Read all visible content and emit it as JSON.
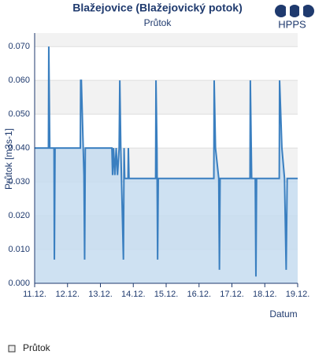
{
  "logo": "HPPS",
  "chart_data": {
    "type": "area",
    "title": "Blažejovice (Blažejovický potok)",
    "subtitle": "Průtok",
    "y_label": "Průtok [m3s-1]",
    "x_label": "Datum",
    "xlim": [
      11,
      19
    ],
    "xticks": [
      {
        "value": 11,
        "label": "11.12."
      },
      {
        "value": 12,
        "label": "12.12."
      },
      {
        "value": 13,
        "label": "13.12."
      },
      {
        "value": 14,
        "label": "14.12."
      },
      {
        "value": 15,
        "label": "15.12."
      },
      {
        "value": 16,
        "label": "16.12."
      },
      {
        "value": 17,
        "label": "17.12."
      },
      {
        "value": 18,
        "label": "18.12."
      },
      {
        "value": 19,
        "label": "19.12."
      }
    ],
    "ylim": [
      0,
      0.074
    ],
    "yticks": [
      {
        "value": 0,
        "label": "0.000"
      },
      {
        "value": 0.01,
        "label": "0.010"
      },
      {
        "value": 0.02,
        "label": "0.020"
      },
      {
        "value": 0.03,
        "label": "0.030"
      },
      {
        "value": 0.04,
        "label": "0.040"
      },
      {
        "value": 0.05,
        "label": "0.050"
      },
      {
        "value": 0.06,
        "label": "0.060"
      },
      {
        "value": 0.07,
        "label": "0.070"
      }
    ],
    "grid": true,
    "alternate_bands": true,
    "legend": "bottom-left",
    "x": [
      11.0,
      11.42,
      11.43,
      11.45,
      11.46,
      11.59,
      11.6,
      11.62,
      12.39,
      12.4,
      12.42,
      12.5,
      12.52,
      12.54,
      13.35,
      13.37,
      13.4,
      13.44,
      13.48,
      13.52,
      13.57,
      13.59,
      13.62,
      13.7,
      13.72,
      13.74,
      13.84,
      13.85,
      13.87,
      14.68,
      14.69,
      14.72,
      14.74,
      14.76,
      16.45,
      16.46,
      16.5,
      16.6,
      16.62,
      16.64,
      17.55,
      17.56,
      17.6,
      17.71,
      17.73,
      17.75,
      18.44,
      18.45,
      18.52,
      18.6,
      18.65,
      18.68,
      19.0
    ],
    "series": [
      {
        "name": "Průtok",
        "color": "#3a7fc0",
        "fill": "#c6dcf0",
        "values": [
          0.04,
          0.04,
          0.07,
          0.05,
          0.04,
          0.04,
          0.007,
          0.04,
          0.04,
          0.06,
          0.06,
          0.032,
          0.007,
          0.04,
          0.04,
          0.032,
          0.04,
          0.032,
          0.04,
          0.032,
          0.04,
          0.06,
          0.04,
          0.007,
          0.04,
          0.031,
          0.031,
          0.04,
          0.031,
          0.031,
          0.06,
          0.04,
          0.007,
          0.031,
          0.031,
          0.06,
          0.04,
          0.031,
          0.004,
          0.031,
          0.031,
          0.06,
          0.031,
          0.031,
          0.002,
          0.031,
          0.031,
          0.06,
          0.04,
          0.031,
          0.004,
          0.031,
          0.031
        ]
      }
    ]
  }
}
